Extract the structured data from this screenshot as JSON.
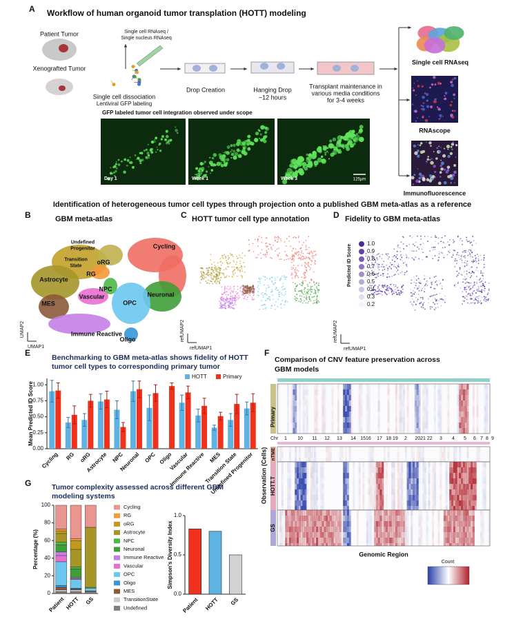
{
  "panel_a": {
    "letter": "A",
    "title": "Workflow of human organoid tumor transplation (HOTT) modeling",
    "patient_tumor": "Patient Tumor",
    "xenografted_tumor": "Xenografted Tumor",
    "sequencing": [
      "Single cell RNAseq /",
      "Single nucleus RNAseq"
    ],
    "dissociation": "Single cell dissociation",
    "labeling": "Lentiviral GFP labeling",
    "drop_creation": "Drop Creation",
    "hanging_drop": [
      "Hanging Drop",
      "~12 hours"
    ],
    "transplant": [
      "Transplant maintenance in",
      "various media conditions",
      "for 3-4 weeks"
    ],
    "gfp_caption": "GFP labeled tumor cell integration observed under scope",
    "timepoints": [
      "Day 1",
      "Week 1",
      "Week 3"
    ],
    "scale_bar": "125µm",
    "outputs": [
      "Single cell RNAseq",
      "RNAscope",
      "Immunofluorescence"
    ]
  },
  "section_title": "Identification of heterogeneous tumor cell types through projection onto a published GBM meta-atlas as a reference",
  "panel_b": {
    "letter": "B",
    "title": "GBM meta-atlas",
    "clusters": [
      [
        "Cycling"
      ],
      [
        "Undefined",
        "Progenitor"
      ],
      [
        "Transition",
        "State"
      ],
      [
        "oRG"
      ],
      [
        "RG"
      ],
      [
        "Astrocyte"
      ],
      [
        "NPC"
      ],
      [
        "Vascular"
      ],
      [
        "Neuronal"
      ],
      [
        "MES"
      ],
      [
        "OPC"
      ],
      [
        "Immune Reactive"
      ],
      [
        "Oligo"
      ]
    ],
    "x_axis": "UMAP1",
    "y_axis": "UMAP2"
  },
  "panel_c": {
    "letter": "C",
    "title": "HOTT tumor cell type annotation",
    "x_axis": "refUMAP1",
    "y_axis": "refUMAP2"
  },
  "panel_d": {
    "letter": "D",
    "title": "Fidelity to GBM meta-atlas",
    "legend_title": "Predicted ID Score",
    "legend_values": [
      "1.0",
      "0.9",
      "0.8",
      "0.7",
      "0.6",
      "0.5",
      "0.4",
      "0.3",
      "0.2"
    ],
    "x_axis": "refUMAP1",
    "y_axis": "refUMAP2"
  },
  "panel_e_letter": "E",
  "panel_f": {
    "letter": "F",
    "title": [
      "Comparison of CNV feature preservation across",
      "GBM models"
    ],
    "chromosome_label": "Chr",
    "chromosomes": [
      "1",
      "10",
      "11",
      "12",
      "13",
      "14",
      "1516",
      "17",
      "18 19",
      "2",
      "2021 22",
      "3",
      "4",
      "5",
      "6",
      "7",
      "8",
      "9"
    ],
    "rows": [
      "Primary",
      "nTME",
      "HOTT.T",
      "GS"
    ],
    "y_axis": "Observation (Cells)",
    "x_axis": "Genomic Region",
    "colorbar_title": "Count"
  },
  "panel_g": {
    "letter": "G",
    "title": [
      "Tumor complexity assessed across different GBM",
      "modeling systems"
    ]
  },
  "chart_data": [
    {
      "type": "bar",
      "title": [
        "Benchmarking to GBM meta-atlas shows fidelity of HOTT",
        "tumor cell types to corresponding primary tumor"
      ],
      "categories": [
        "Cycling",
        "RG",
        "oRG",
        "Astrocyte",
        "NPC",
        "Neuronal",
        "OPC",
        "Oligo",
        "Vascular",
        "Immune Reactive",
        "MES",
        "Transition State",
        "Undefined Progenitor"
      ],
      "y_label": "Mean Predicted ID Score",
      "series": [
        {
          "name": "HOTT",
          "color": "#5fb3e3",
          "values": [
            0.9,
            0.41,
            0.45,
            0.74,
            0.61,
            0.9,
            0.64,
            null,
            0.72,
            0.52,
            0.33,
            0.45,
            0.63
          ],
          "errors": [
            0.17,
            0.08,
            0.1,
            0.12,
            0.14,
            0.16,
            0.2,
            null,
            0.12,
            0.1,
            0.04,
            0.1,
            0.1
          ]
        },
        {
          "name": "Primary",
          "color": "#f0321c",
          "values": [
            0.91,
            0.53,
            0.75,
            0.77,
            0.34,
            0.93,
            0.87,
            0.98,
            0.88,
            0.67,
            0.51,
            0.7,
            0.72
          ],
          "errors": [
            0.12,
            0.14,
            0.1,
            0.13,
            0.07,
            0.13,
            0.13,
            0.05,
            0.1,
            0.12,
            0.06,
            0.15,
            0.14
          ]
        }
      ],
      "ylim": [
        0,
        1.1
      ],
      "yticks": [
        {
          "value": 0,
          "label": "0.00"
        },
        {
          "value": 0.25,
          "label": "0.25"
        },
        {
          "value": 0.5,
          "label": "0.50"
        },
        {
          "value": 0.75,
          "label": "0.75"
        },
        {
          "value": 1,
          "label": "1.00"
        }
      ],
      "legend": "top-right"
    },
    {
      "type": "stacked-bar",
      "categories": [
        "Patient",
        "HOTT",
        "GS"
      ],
      "y_label": "Percentage (%)",
      "series": [
        {
          "name": "Cycling",
          "color": "#e8968f",
          "values": [
            27,
            38,
            25
          ]
        },
        {
          "name": "RG",
          "color": "#f29a3a",
          "values": [
            2,
            2,
            0
          ]
        },
        {
          "name": "oRG",
          "color": "#c09a1e",
          "values": [
            3,
            10,
            0
          ]
        },
        {
          "name": "Astrocyte",
          "color": "#a6962a",
          "values": [
            10,
            20,
            68
          ]
        },
        {
          "name": "NPC",
          "color": "#4cb848",
          "values": [
            3,
            2,
            1
          ]
        },
        {
          "name": "Neuronal",
          "color": "#3f9e36",
          "values": [
            8,
            10,
            0
          ]
        },
        {
          "name": "Immune Reactive",
          "color": "#c47fe6",
          "values": [
            4,
            1,
            0
          ]
        },
        {
          "name": "Vascular",
          "color": "#ea6fd2",
          "values": [
            7,
            1,
            0
          ]
        },
        {
          "name": "OPC",
          "color": "#6cc6ee",
          "values": [
            27,
            10,
            3
          ]
        },
        {
          "name": "Oligo",
          "color": "#3596d6",
          "values": [
            2,
            1,
            0
          ]
        },
        {
          "name": "MES",
          "color": "#8c5a3a",
          "values": [
            3,
            1,
            1
          ]
        },
        {
          "name": "TransitionState",
          "color": "#cccccc",
          "values": [
            2,
            2,
            1
          ]
        },
        {
          "name": "Undefined",
          "color": "#7f7f7f",
          "values": [
            2,
            2,
            1
          ]
        }
      ],
      "ylim": [
        0,
        100
      ],
      "yticks": [
        0,
        20,
        40,
        60,
        80,
        100
      ]
    },
    {
      "type": "bar",
      "categories": [
        "Patient",
        "HOTT",
        "GS"
      ],
      "y_label": "Simpson's Diversity Index",
      "values": [
        0.83,
        0.8,
        0.5
      ],
      "colors": [
        "#f0321c",
        "#5fb3e3",
        "#d2d2d2"
      ],
      "ylim": [
        0,
        1
      ],
      "yticks": [
        {
          "value": 0,
          "label": "0.0"
        },
        {
          "value": 0.5,
          "label": "0.5"
        },
        {
          "value": 1,
          "label": "1.0"
        }
      ]
    }
  ]
}
